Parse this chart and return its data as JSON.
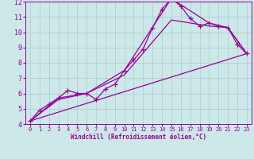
{
  "xlabel": "Windchill (Refroidissement éolien,°C)",
  "xlim": [
    -0.5,
    23.5
  ],
  "ylim": [
    4,
    12
  ],
  "xticks": [
    0,
    1,
    2,
    3,
    4,
    5,
    6,
    7,
    8,
    9,
    10,
    11,
    12,
    13,
    14,
    15,
    16,
    17,
    18,
    19,
    20,
    21,
    22,
    23
  ],
  "yticks": [
    4,
    5,
    6,
    7,
    8,
    9,
    10,
    11,
    12
  ],
  "bg_color": "#cce8e8",
  "line_color": "#990099",
  "grid_color": "#aacccc",
  "line_main": {
    "x": [
      0,
      1,
      2,
      3,
      4,
      5,
      6,
      7,
      8,
      9,
      10,
      11,
      12,
      13,
      14,
      15,
      16,
      17,
      18,
      19,
      20,
      21,
      22,
      23
    ],
    "y": [
      4.2,
      4.9,
      5.3,
      5.7,
      6.2,
      6.0,
      6.0,
      5.6,
      6.3,
      6.6,
      7.5,
      8.2,
      8.9,
      10.3,
      11.5,
      12.2,
      11.7,
      10.9,
      10.4,
      10.6,
      10.4,
      10.3,
      9.2,
      8.6
    ]
  },
  "line_upper": {
    "x": [
      0,
      3,
      6,
      10,
      15,
      19,
      21,
      23
    ],
    "y": [
      4.2,
      5.7,
      6.0,
      7.5,
      12.2,
      10.6,
      10.3,
      8.6
    ]
  },
  "line_mid": {
    "x": [
      0,
      3,
      6,
      10,
      15,
      19,
      21,
      23
    ],
    "y": [
      4.2,
      5.6,
      6.0,
      7.2,
      10.8,
      10.4,
      10.3,
      8.6
    ]
  },
  "line_lower": {
    "x": [
      0,
      23
    ],
    "y": [
      4.2,
      8.6
    ]
  }
}
